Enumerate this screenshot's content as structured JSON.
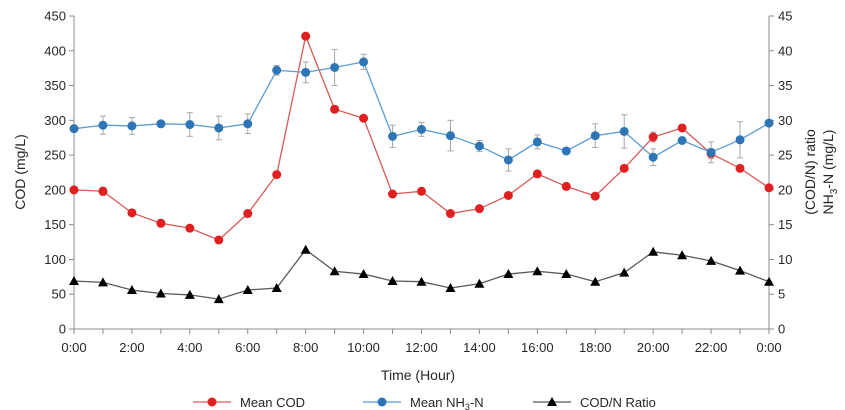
{
  "chart_data": {
    "type": "line",
    "x_tick_labels": [
      "0:00",
      "2:00",
      "4:00",
      "6:00",
      "8:00",
      "10:00",
      "12:00",
      "14:00",
      "16:00",
      "18:00",
      "20:00",
      "22:00",
      "0:00"
    ],
    "x": [
      "0:00",
      "1:00",
      "2:00",
      "3:00",
      "4:00",
      "5:00",
      "6:00",
      "7:00",
      "8:00",
      "9:00",
      "10:00",
      "11:00",
      "12:00",
      "13:00",
      "14:00",
      "15:00",
      "16:00",
      "17:00",
      "18:00",
      "19:00",
      "20:00",
      "21:00",
      "22:00",
      "23:00",
      "0:00"
    ],
    "xlabel": "Time (Hour)",
    "y_left": {
      "label": "COD (mg/L)",
      "ylim": [
        0,
        450
      ],
      "ticks": [
        "0",
        "50",
        "100",
        "150",
        "200",
        "250",
        "300",
        "350",
        "400",
        "450"
      ]
    },
    "y_right": {
      "label_line1": "(COD/N) ratio",
      "label_line2_prefix": "NH",
      "label_line2_sub": "3",
      "label_line2_suffix": "-N (mg/L)",
      "ylim": [
        0,
        45
      ],
      "ticks": [
        "0",
        "5",
        "10",
        "15",
        "20",
        "25",
        "30",
        "35",
        "40",
        "45"
      ]
    },
    "grid": false,
    "legend_position": "bottom",
    "series": [
      {
        "name": "Mean COD",
        "axis": "left",
        "color": "#e02020",
        "line_color": "#d85a5a",
        "marker": "circle",
        "values": [
          200,
          198,
          167,
          152,
          145,
          128,
          166,
          222,
          421,
          316,
          303,
          194,
          198,
          166,
          173,
          192,
          223,
          205,
          191,
          231,
          276,
          289,
          252,
          231,
          203
        ],
        "errors": [
          0,
          6,
          0,
          5,
          0,
          0,
          0,
          0,
          0,
          5,
          0,
          0,
          0,
          0,
          0,
          0,
          0,
          0,
          0,
          0,
          7,
          0,
          7,
          0,
          0
        ]
      },
      {
        "name": "Mean NH3-N",
        "name_parts": [
          "Mean NH",
          "3",
          "-N"
        ],
        "axis": "right",
        "color": "#2e75b6",
        "line_color": "#5b9bd5",
        "marker": "circle",
        "values": [
          28.8,
          29.3,
          29.2,
          29.5,
          29.4,
          28.9,
          29.5,
          37.2,
          36.9,
          37.6,
          38.4,
          27.7,
          28.7,
          27.8,
          26.3,
          24.3,
          26.9,
          25.6,
          27.8,
          28.4,
          24.7,
          27.1,
          25.4,
          27.2,
          29.6
        ],
        "errors": [
          0,
          1.3,
          1.2,
          0,
          1.7,
          1.7,
          1.4,
          0.7,
          1.5,
          2.6,
          1.1,
          1.6,
          1.0,
          2.2,
          0.8,
          1.6,
          1.0,
          0,
          1.7,
          2.4,
          1.2,
          0,
          1.5,
          2.6,
          0
        ]
      },
      {
        "name": "COD/N Ratio",
        "axis": "right",
        "color": "#000000",
        "line_color": "#595959",
        "marker": "triangle",
        "values": [
          6.9,
          6.7,
          5.6,
          5.1,
          4.9,
          4.3,
          5.6,
          5.9,
          11.4,
          8.3,
          7.9,
          6.9,
          6.8,
          5.9,
          6.5,
          7.9,
          8.3,
          7.9,
          6.8,
          8.1,
          11.1,
          10.6,
          9.8,
          8.4,
          6.8
        ]
      }
    ]
  }
}
